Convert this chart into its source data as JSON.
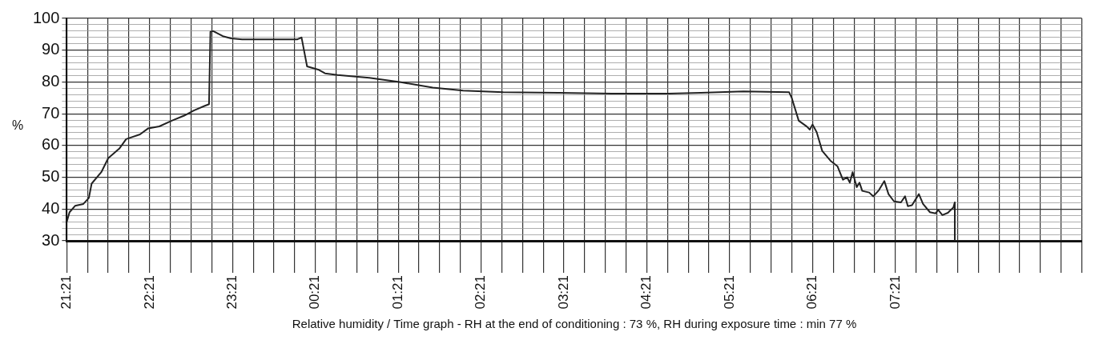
{
  "chart_data": {
    "type": "line",
    "xlabel": "Relative humidity / Time graph - RH at the end of conditioning : 73 %, RH during exposure time : min 77 %",
    "ylabel": "%",
    "series": [
      {
        "color": "#222222",
        "x": [
          "--01-01T21:21",
          "--01-01T21:23",
          "--01-01T21:27",
          "--01-01T21:33",
          "--01-01T21:37",
          "--01-01T21:39",
          "--01-01T21:46",
          "--01-01T21:51",
          "--01-01T21:59",
          "--01-01T22:04",
          "--01-01T22:14",
          "--01-01T22:20",
          "--01-01T22:28",
          "--01-01T22:37",
          "--01-01T22:46",
          "--01-01T22:53",
          "--01-01T23:01",
          "--01-01T23:04",
          "--01-01T23:05",
          "--01-01T23:07",
          "--01-01T23:14",
          "--01-01T23:20",
          "--01-01T23:28",
          "--01-02T00:08",
          "--01-02T00:11",
          "--01-02T00:15",
          "--01-02T00:23",
          "--01-02T00:28",
          "--01-02T00:37",
          "--01-02T01:00",
          "--01-02T01:23",
          "--01-02T01:46",
          "--01-02T02:08",
          "--01-02T02:37",
          "--01-02T03:17",
          "--01-02T04:03",
          "--01-02T04:37",
          "--01-02T05:00",
          "--01-02T05:31",
          "--01-02T06:04",
          "--01-02T06:06",
          "--01-02T06:11",
          "--01-02T06:17",
          "--01-02T06:19",
          "--01-02T06:21",
          "--01-02T06:24",
          "--01-02T06:28",
          "--01-02T06:34",
          "--01-02T06:39",
          "--01-02T06:43",
          "--01-02T06:46",
          "--01-02T06:48",
          "--01-02T06:50",
          "--01-02T06:53",
          "--01-02T06:55",
          "--01-02T06:57",
          "--01-02T07:02",
          "--01-02T07:05",
          "--01-02T07:09",
          "--01-02T07:13",
          "--01-02T07:16",
          "--01-02T07:20",
          "--01-02T07:25",
          "--01-02T07:28",
          "--01-02T07:30",
          "--01-02T07:33",
          "--01-02T07:38",
          "--01-02T07:41",
          "--01-02T07:46",
          "--01-02T07:50",
          "--01-02T07:52",
          "--01-02T07:55",
          "--01-02T07:59",
          "--01-02T08:03",
          "--01-02T08:04",
          "--01-02T08:04",
          "--01-02T09:36"
        ],
        "values": [
          36,
          39,
          41,
          41.6,
          43.5,
          48,
          51.6,
          56,
          59,
          62,
          63.5,
          65.4,
          66,
          67.8,
          69.4,
          71,
          72.5,
          73,
          95.8,
          96,
          94.4,
          93.7,
          93.4,
          93.4,
          94,
          84.9,
          83.9,
          82.7,
          82.2,
          81.3,
          79.9,
          78.2,
          77.3,
          76.8,
          76.6,
          76.3,
          76.3,
          76.6,
          77,
          76.8,
          74.9,
          67.8,
          65.9,
          65,
          66.6,
          64.2,
          58.3,
          55.2,
          53.5,
          49.2,
          50,
          48.3,
          51.6,
          46.9,
          48.3,
          45.7,
          45.2,
          44,
          45.9,
          48.8,
          44.7,
          42.4,
          42.1,
          44,
          40.9,
          41.2,
          44.7,
          41.6,
          39,
          38.6,
          39.7,
          38.1,
          38.8,
          40.5,
          42.1,
          30,
          30
        ]
      }
    ],
    "xlim": [
      "--01-01T21:21",
      "--01-02T09:36"
    ],
    "xticks": [
      {
        "value": "--01-01T21:21",
        "label": "21:21"
      },
      {
        "value": "--01-01T21:36",
        "label": null
      },
      {
        "value": "--01-01T21:51",
        "label": null
      },
      {
        "value": "--01-01T22:06",
        "label": null
      },
      {
        "value": "--01-01T22:21",
        "label": "22:21"
      },
      {
        "value": "--01-01T22:36",
        "label": null
      },
      {
        "value": "--01-01T22:51",
        "label": null
      },
      {
        "value": "--01-01T23:06",
        "label": null
      },
      {
        "value": "--01-01T23:21",
        "label": "23:21"
      },
      {
        "value": "--01-01T23:36",
        "label": null
      },
      {
        "value": "--01-01T23:51",
        "label": null
      },
      {
        "value": "--01-02T00:06",
        "label": null
      },
      {
        "value": "--01-02T00:21",
        "label": "00:21"
      },
      {
        "value": "--01-02T00:36",
        "label": null
      },
      {
        "value": "--01-02T00:51",
        "label": null
      },
      {
        "value": "--01-02T01:06",
        "label": null
      },
      {
        "value": "--01-02T01:21",
        "label": "01:21"
      },
      {
        "value": "--01-02T01:36",
        "label": null
      },
      {
        "value": "--01-02T01:51",
        "label": null
      },
      {
        "value": "--01-02T02:06",
        "label": null
      },
      {
        "value": "--01-02T02:21",
        "label": "02:21"
      },
      {
        "value": "--01-02T02:36",
        "label": null
      },
      {
        "value": "--01-02T02:51",
        "label": null
      },
      {
        "value": "--01-02T03:06",
        "label": null
      },
      {
        "value": "--01-02T03:21",
        "label": "03:21"
      },
      {
        "value": "--01-02T03:36",
        "label": null
      },
      {
        "value": "--01-02T03:51",
        "label": null
      },
      {
        "value": "--01-02T04:06",
        "label": null
      },
      {
        "value": "--01-02T04:21",
        "label": "04:21"
      },
      {
        "value": "--01-02T04:36",
        "label": null
      },
      {
        "value": "--01-02T04:51",
        "label": null
      },
      {
        "value": "--01-02T05:06",
        "label": null
      },
      {
        "value": "--01-02T05:21",
        "label": "05:21"
      },
      {
        "value": "--01-02T05:36",
        "label": null
      },
      {
        "value": "--01-02T05:51",
        "label": null
      },
      {
        "value": "--01-02T06:06",
        "label": null
      },
      {
        "value": "--01-02T06:21",
        "label": "06:21"
      },
      {
        "value": "--01-02T06:36",
        "label": null
      },
      {
        "value": "--01-02T06:51",
        "label": null
      },
      {
        "value": "--01-02T07:06",
        "label": null
      },
      {
        "value": "--01-02T07:21",
        "label": "07:21"
      },
      {
        "value": "--01-02T07:36",
        "label": null
      },
      {
        "value": "--01-02T07:51",
        "label": null
      },
      {
        "value": "--01-02T08:06",
        "label": null
      },
      {
        "value": "--01-02T08:21",
        "label": null
      },
      {
        "value": "--01-02T08:36",
        "label": null
      },
      {
        "value": "--01-02T08:51",
        "label": null
      },
      {
        "value": "--01-02T09:06",
        "label": null
      },
      {
        "value": "--01-02T09:21",
        "label": null
      },
      {
        "value": "--01-02T09:36",
        "label": null
      }
    ],
    "ylim": [
      30,
      100
    ],
    "yticks": [
      30,
      {
        "value": 32,
        "label": null
      },
      {
        "value": 34,
        "label": null
      },
      {
        "value": 36,
        "label": null
      },
      {
        "value": 38,
        "label": null
      },
      40,
      {
        "value": 42,
        "label": null
      },
      {
        "value": 44,
        "label": null
      },
      {
        "value": 46,
        "label": null
      },
      {
        "value": 48,
        "label": null
      },
      50,
      {
        "value": 52,
        "label": null
      },
      {
        "value": 54,
        "label": null
      },
      {
        "value": 56,
        "label": null
      },
      {
        "value": 58,
        "label": null
      },
      60,
      {
        "value": 62,
        "label": null
      },
      {
        "value": 64,
        "label": null
      },
      {
        "value": 66,
        "label": null
      },
      {
        "value": 68,
        "label": null
      },
      70,
      {
        "value": 72,
        "label": null
      },
      {
        "value": 74,
        "label": null
      },
      {
        "value": 76,
        "label": null
      },
      {
        "value": 78,
        "label": null
      },
      80,
      {
        "value": 82,
        "label": null
      },
      {
        "value": 84,
        "label": null
      },
      {
        "value": 86,
        "label": null
      },
      {
        "value": 88,
        "label": null
      },
      90,
      {
        "value": 92,
        "label": null
      },
      {
        "value": 94,
        "label": null
      },
      {
        "value": 96,
        "label": null
      },
      {
        "value": 98,
        "label": null
      },
      100
    ],
    "grid": true,
    "legend": false,
    "marker": "none",
    "line_style": "solid"
  }
}
